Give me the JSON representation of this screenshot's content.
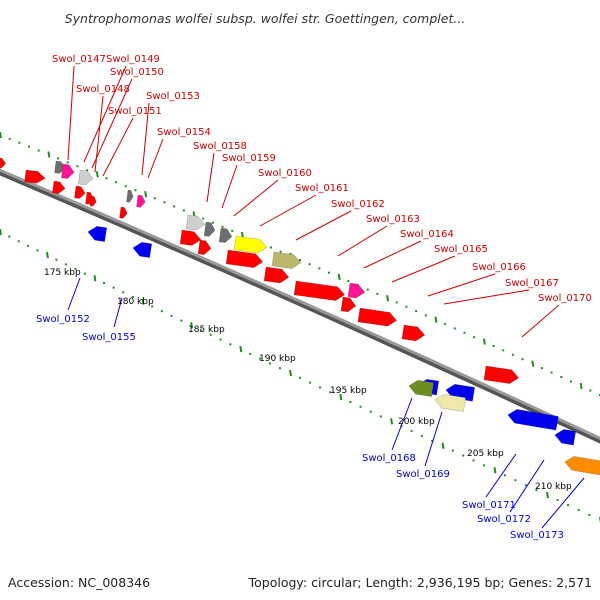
{
  "title": "Syntrophomonas wolfei subsp. wolfei str. Goettingen, complet...",
  "footer": {
    "accession": "Accession: NC_008346",
    "summary": "Topology: circular; Length: 2,936,195 bp; Genes: 2,571"
  },
  "colors": {
    "forward_label": "#cc0000",
    "reverse_label": "#0000cc",
    "backbone": "#888888",
    "tick": "#228b22",
    "red": "#ff0000",
    "blue": "#0000ee",
    "magenta": "#ff1493",
    "pink": "#ff1493",
    "gray": "#6e6e6e",
    "lightgray": "#cfcfcf",
    "yellow": "#ffff00",
    "khaki": "#bdb76b",
    "olive": "#6b8e23",
    "palegold": "#eee8aa",
    "orange": "#ff8c00"
  },
  "scale": {
    "unit": "kbp",
    "labels": [
      "175 kbp",
      "180 kbp",
      "185 kbp",
      "190 kbp",
      "195 kbp",
      "200 kbp",
      "205 kbp",
      "210 kbp"
    ]
  },
  "forward_labels": [
    "Swol_0147",
    "Swol_0149",
    "Swol_0150",
    "Swol_0148",
    "Swol_0153",
    "Swol_0151",
    "Swol_0154",
    "Swol_0158",
    "Swol_0159",
    "Swol_0160",
    "Swol_0161",
    "Swol_0162",
    "Swol_0163",
    "Swol_0164",
    "Swol_0165",
    "Swol_0166",
    "Swol_0167",
    "Swol_0170"
  ],
  "reverse_labels": [
    "Swol_0152",
    "Swol_0155",
    "Swol_0168",
    "Swol_0169",
    "Swol_0171",
    "Swol_0172",
    "Swol_0173"
  ],
  "features": [
    {
      "strand": "forward",
      "color": "red"
    },
    {
      "strand": "forward",
      "color": "red"
    },
    {
      "strand": "forward",
      "color": "gray"
    },
    {
      "strand": "forward",
      "color": "magenta"
    },
    {
      "strand": "forward",
      "color": "red"
    },
    {
      "strand": "forward",
      "color": "lightgray"
    },
    {
      "strand": "forward",
      "color": "red"
    },
    {
      "strand": "forward",
      "color": "red"
    },
    {
      "strand": "forward",
      "color": "red"
    },
    {
      "strand": "forward",
      "color": "gray"
    },
    {
      "strand": "forward",
      "color": "red"
    },
    {
      "strand": "forward",
      "color": "pink"
    },
    {
      "strand": "forward",
      "color": "lightgray"
    },
    {
      "strand": "forward",
      "color": "gray"
    },
    {
      "strand": "forward",
      "color": "red"
    },
    {
      "strand": "forward",
      "color": "red"
    },
    {
      "strand": "forward",
      "color": "gray"
    },
    {
      "strand": "forward",
      "color": "yellow"
    },
    {
      "strand": "forward",
      "color": "khaki"
    },
    {
      "strand": "forward",
      "color": "red"
    },
    {
      "strand": "forward",
      "color": "red"
    },
    {
      "strand": "forward",
      "color": "red"
    },
    {
      "strand": "forward",
      "color": "magenta"
    },
    {
      "strand": "forward",
      "color": "red"
    },
    {
      "strand": "forward",
      "color": "red"
    },
    {
      "strand": "forward",
      "color": "red"
    },
    {
      "strand": "forward",
      "color": "red"
    },
    {
      "strand": "reverse",
      "color": "blue"
    },
    {
      "strand": "reverse",
      "color": "blue"
    },
    {
      "strand": "reverse",
      "color": "blue"
    },
    {
      "strand": "reverse",
      "color": "blue"
    },
    {
      "strand": "reverse",
      "color": "olive"
    },
    {
      "strand": "reverse",
      "color": "palegold"
    },
    {
      "strand": "reverse",
      "color": "blue"
    },
    {
      "strand": "reverse",
      "color": "blue"
    },
    {
      "strand": "reverse",
      "color": "orange"
    }
  ]
}
